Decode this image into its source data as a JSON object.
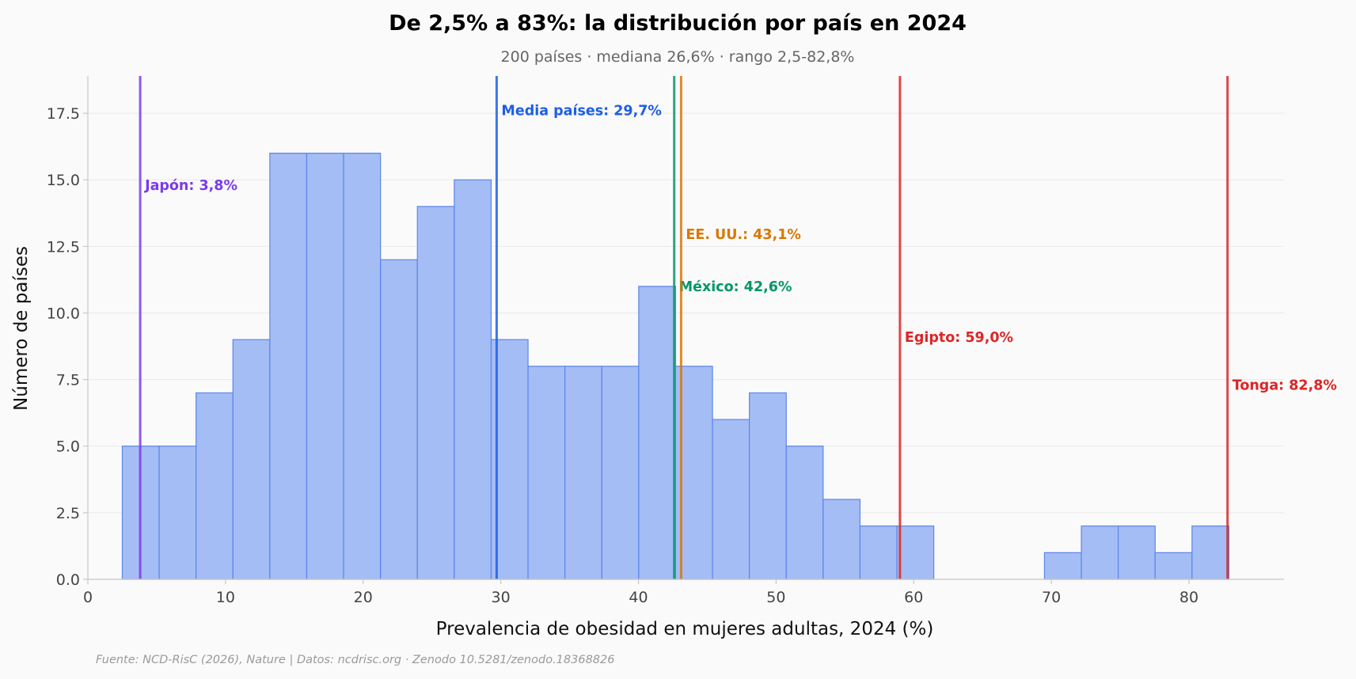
{
  "title": "De 2,5% a 83%: la distribución por país en 2024",
  "subtitle": "200 países · mediana 26,6% · rango 2,5-82,8%",
  "footnote": "Fuente: NCD-RisC (2026), Nature | Datos: ncdrisc.org · Zenodo 10.5281/zenodo.18368826",
  "chart_data": {
    "type": "bar",
    "subtype": "histogram",
    "title": "De 2,5% a 83%: la distribución por país en 2024",
    "xlabel": "Prevalencia de obesidad en mujeres adultas, 2024 (%)",
    "ylabel": "Número de países",
    "xlim": [
      0,
      86.9
    ],
    "ylim": [
      0,
      18.9
    ],
    "x_ticks": [
      0,
      10,
      20,
      30,
      40,
      50,
      60,
      70,
      80
    ],
    "x_tick_labels": [
      "0",
      "10",
      "20",
      "30",
      "40",
      "50",
      "60",
      "70",
      "80"
    ],
    "y_ticks": [
      0,
      2.5,
      5,
      7.5,
      10,
      12.5,
      15,
      17.5
    ],
    "y_tick_labels": [
      "0.0",
      "2.5",
      "5.0",
      "7.5",
      "10.0",
      "12.5",
      "15.0",
      "17.5"
    ],
    "grid": "horizontal",
    "bin_start": 2.5,
    "bin_width": 2.68,
    "counts": [
      5,
      5,
      7,
      9,
      16,
      16,
      16,
      12,
      14,
      15,
      9,
      8,
      8,
      8,
      11,
      8,
      6,
      7,
      5,
      3,
      2,
      2,
      0,
      0,
      0,
      1,
      2,
      2,
      1,
      2
    ],
    "reference_lines": [
      {
        "label": "Japón: 3,8%",
        "x": 3.8,
        "color": "#7c3aed",
        "label_y": 14.8
      },
      {
        "label": "Media países: 29,7%",
        "x": 29.7,
        "color": "#1d5fe6",
        "label_y": 17.6
      },
      {
        "label": "México: 42,6%",
        "x": 42.6,
        "color": "#059669",
        "label_y": 11.0
      },
      {
        "label": "EE. UU.: 43,1%",
        "x": 43.1,
        "color": "#d97706",
        "label_y": 12.95
      },
      {
        "label": "Egipto: 59,0%",
        "x": 59.0,
        "color": "#dc2626",
        "label_y": 9.1
      },
      {
        "label": "Tonga: 82,8%",
        "x": 82.8,
        "color": "#dc2626",
        "label_y": 7.3
      }
    ]
  }
}
